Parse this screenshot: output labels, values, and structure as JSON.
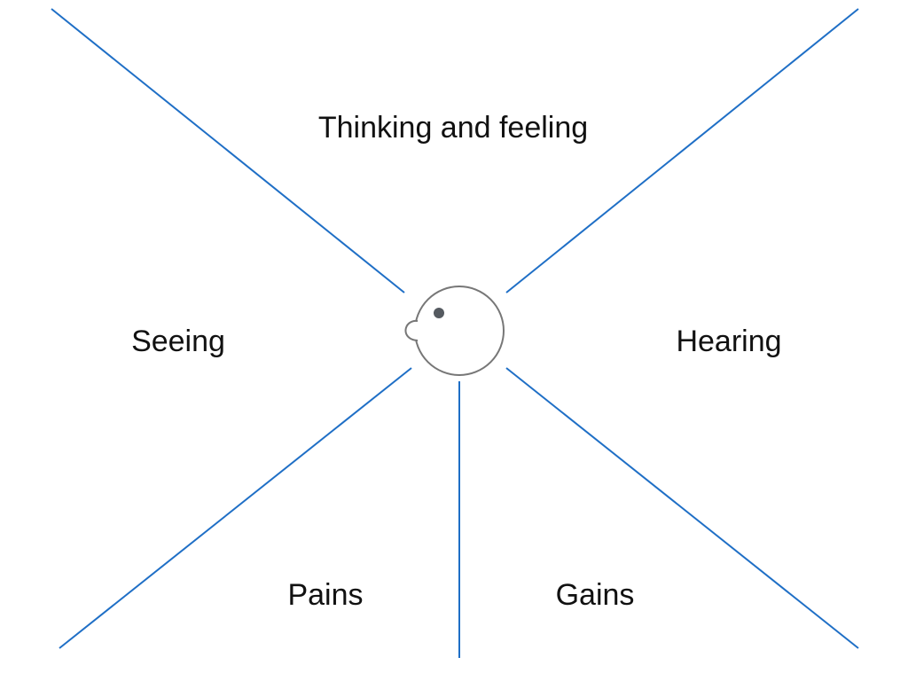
{
  "diagram": {
    "labels": {
      "top": "Thinking and feeling",
      "left": "Seeing",
      "right": "Hearing",
      "bottom_left": "Pains",
      "bottom_right": "Gains"
    },
    "colors": {
      "divider_line": "#1f6fc6",
      "head_outline": "#777777",
      "eye": "#555a60",
      "text": "#111111"
    },
    "center_icon": "head-profile-icon"
  }
}
